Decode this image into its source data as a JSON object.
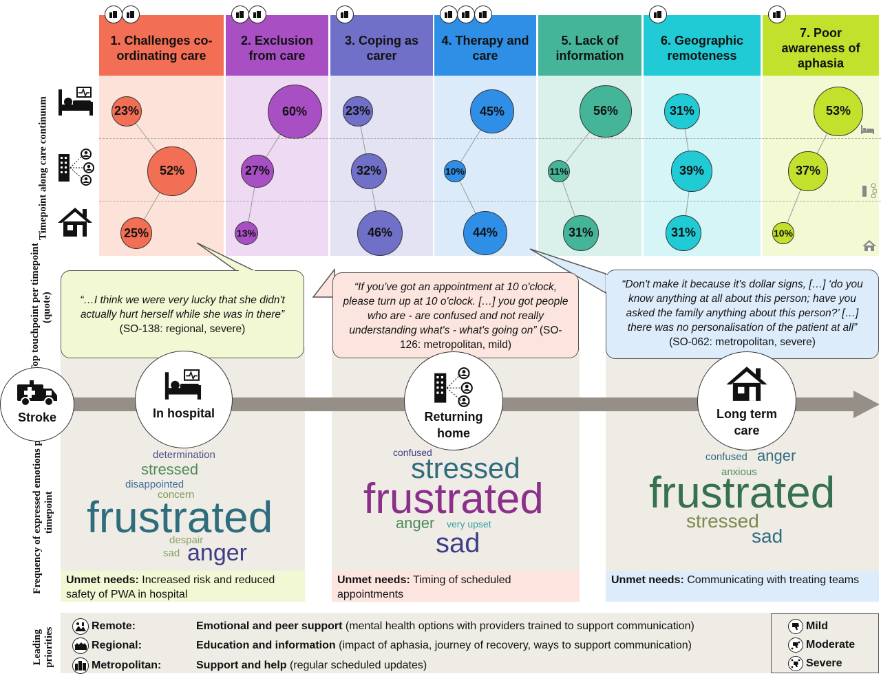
{
  "themes": [
    {
      "label": "1. Challenges co-ordinating care",
      "color": "#f26e54",
      "light": "#fde2da",
      "values": [
        "23%",
        "52%",
        "25%"
      ]
    },
    {
      "label": "2. Exclusion from care",
      "color": "#a94fc4",
      "light": "#eedaf3",
      "values": [
        "60%",
        "27%",
        "13%"
      ]
    },
    {
      "label": "3. Coping as carer",
      "color": "#7070c8",
      "light": "#e3e3f4",
      "values": [
        "23%",
        "32%",
        "46%"
      ]
    },
    {
      "label": "4. Therapy and care",
      "color": "#2f8fe6",
      "light": "#dcebfa",
      "values": [
        "45%",
        "10%",
        "44%"
      ]
    },
    {
      "label": "5. Lack of information",
      "color": "#45b59a",
      "light": "#d9f1ea",
      "values": [
        "56%",
        "11%",
        "31%"
      ]
    },
    {
      "label": "6. Geographic remoteness",
      "color": "#21cbd6",
      "light": "#d5f5f7",
      "values": [
        "31%",
        "39%",
        "31%"
      ]
    },
    {
      "label": "7. Poor awareness of aphasia",
      "color": "#c2e12c",
      "light": "#f2f9d3",
      "values": [
        "53%",
        "37%",
        "10%"
      ]
    }
  ],
  "axis_labels": {
    "timepoint": "Timepoint along care continuum",
    "touchpoint": "Top touchpoint per timepoint (quote)",
    "frequency": "Frequency of expressed emotions per timepoint",
    "priorities": "Leading priorities"
  },
  "quotes": [
    {
      "text": "“…I think we were very lucky that she didn't actually hurt herself while she was in there”",
      "ref": " (SO-138: regional, severe)"
    },
    {
      "text": "“If you’ve got an appointment at 10 o'clock, please turn up at 10 o'clock. […] you got people who are - are confused and not really understanding what's - what's going on”",
      "ref": " (SO-126: metropolitan, mild)"
    },
    {
      "text": "“Don't make it because it's dollar signs, […] ‘do you know anything at all about this person; have you asked the family anything about this person?’ […] there was no personalisation of the patient at all”",
      "ref": " (SO-062: metropolitan, severe)"
    }
  ],
  "stages": {
    "stroke": "Stroke",
    "hospital": "In hospital",
    "returning": "Returning home",
    "longterm": "Long term care"
  },
  "words": {
    "hospital": [
      "determination",
      "stressed",
      "disappointed",
      "concern",
      "frustrated",
      "despair",
      "sad",
      "anger"
    ],
    "returning": [
      "confused",
      "stressed",
      "frustrated",
      "anger",
      "very upset",
      "sad"
    ],
    "longterm": [
      "confused",
      "anger",
      "anxious",
      "frustrated",
      "stressed",
      "sad"
    ]
  },
  "needs": {
    "label": "Unmet needs:",
    "hospital": " Increased risk and reduced safety of PWA in hospital",
    "returning": " Timing of scheduled appointments",
    "longterm": " Communicating with treating teams"
  },
  "priorities": [
    {
      "group": "Remote:",
      "title": "Emotional and peer support",
      "detail": " (mental health options with providers trained to support communication)"
    },
    {
      "group": "Regional:",
      "title": "Education and information",
      "detail": " (impact of aphasia, journey of recovery, ways to support communication)"
    },
    {
      "group": "Metropolitan:",
      "title": "Support and help",
      "detail": " (regular scheduled updates)"
    }
  ],
  "legend": [
    "Mild",
    "Moderate",
    "Severe"
  ],
  "icons": {
    "remote": "remote-icon",
    "regional": "regional-icon",
    "metropolitan": "metropolitan-icon",
    "mild": "mild-icon",
    "moderate": "moderate-icon",
    "severe": "severe-icon",
    "hospital": "hospital-bed-icon",
    "facility": "facility-network-icon",
    "home": "house-icon",
    "ambulance": "ambulance-icon"
  }
}
